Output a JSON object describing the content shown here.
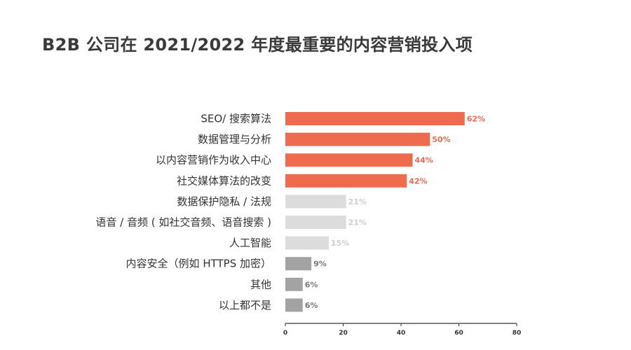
{
  "chart_data": {
    "type": "bar",
    "orientation": "horizontal",
    "title": "B2B 公司在 2021/2022 年度最重要的内容营销投入项",
    "categories": [
      "SEO/ 搜索算法",
      "数据管理与分析",
      "以内容营销作为收入中心",
      "社交媒体算法的改变",
      "数据保护隐私 / 法规",
      "语音 / 音频 ( 如社交音频、语音搜索 )",
      "人工智能",
      "内容安全（例如 HTTPS 加密）",
      "其他",
      "以上都不是"
    ],
    "values": [
      62,
      50,
      44,
      42,
      21,
      21,
      15,
      9,
      6,
      6
    ],
    "value_labels": [
      "62%",
      "50%",
      "44%",
      "42%",
      "21%",
      "21%",
      "15%",
      "9%",
      "6%",
      "6%"
    ],
    "xlim": [
      0,
      80
    ],
    "xticks": [
      "0",
      "20",
      "40",
      "60",
      "80"
    ],
    "grid": false,
    "colors": {
      "highlight": "#ee6b50",
      "light": "#dcdcdc",
      "medium": "#a3a3a3",
      "light_label": "#cfcfcf",
      "medium_label": "#777777"
    },
    "bar_color_groups": [
      "highlight",
      "highlight",
      "highlight",
      "highlight",
      "light",
      "light",
      "light",
      "medium",
      "medium",
      "medium"
    ]
  }
}
